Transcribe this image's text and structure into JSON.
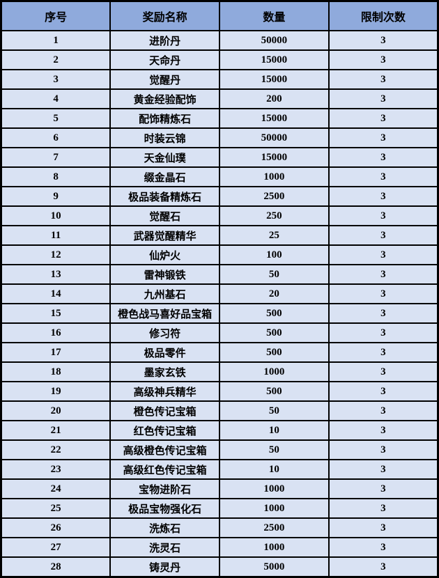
{
  "table": {
    "headers": [
      "序号",
      "奖励名称",
      "数量",
      "限制次数"
    ],
    "rows": [
      [
        "1",
        "进阶丹",
        "50000",
        "3"
      ],
      [
        "2",
        "天命丹",
        "15000",
        "3"
      ],
      [
        "3",
        "觉醒丹",
        "15000",
        "3"
      ],
      [
        "4",
        "黄金经验配饰",
        "200",
        "3"
      ],
      [
        "5",
        "配饰精炼石",
        "15000",
        "3"
      ],
      [
        "6",
        "时装云锦",
        "50000",
        "3"
      ],
      [
        "7",
        "天金仙璞",
        "15000",
        "3"
      ],
      [
        "8",
        "缀金晶石",
        "1000",
        "3"
      ],
      [
        "9",
        "极品装备精炼石",
        "2500",
        "3"
      ],
      [
        "10",
        "觉醒石",
        "250",
        "3"
      ],
      [
        "11",
        "武器觉醒精华",
        "25",
        "3"
      ],
      [
        "12",
        "仙炉火",
        "100",
        "3"
      ],
      [
        "13",
        "雷神锻铁",
        "50",
        "3"
      ],
      [
        "14",
        "九州基石",
        "20",
        "3"
      ],
      [
        "15",
        "橙色战马喜好品宝箱",
        "500",
        "3"
      ],
      [
        "16",
        "修习符",
        "500",
        "3"
      ],
      [
        "17",
        "极品零件",
        "500",
        "3"
      ],
      [
        "18",
        "墨家玄铁",
        "1000",
        "3"
      ],
      [
        "19",
        "高级神兵精华",
        "500",
        "3"
      ],
      [
        "20",
        "橙色传记宝箱",
        "50",
        "3"
      ],
      [
        "21",
        "红色传记宝箱",
        "10",
        "3"
      ],
      [
        "22",
        "高级橙色传记宝箱",
        "50",
        "3"
      ],
      [
        "23",
        "高级红色传记宝箱",
        "10",
        "3"
      ],
      [
        "24",
        "宝物进阶石",
        "1000",
        "3"
      ],
      [
        "25",
        "极品宝物强化石",
        "1000",
        "3"
      ],
      [
        "26",
        "洗炼石",
        "2500",
        "3"
      ],
      [
        "27",
        "洗灵石",
        "1000",
        "3"
      ],
      [
        "28",
        "铸灵丹",
        "5000",
        "3"
      ]
    ]
  },
  "colors": {
    "header_bg": "#8FAADC",
    "row_bg": "#D9E2F3",
    "border": "#000000",
    "text": "#000000"
  }
}
